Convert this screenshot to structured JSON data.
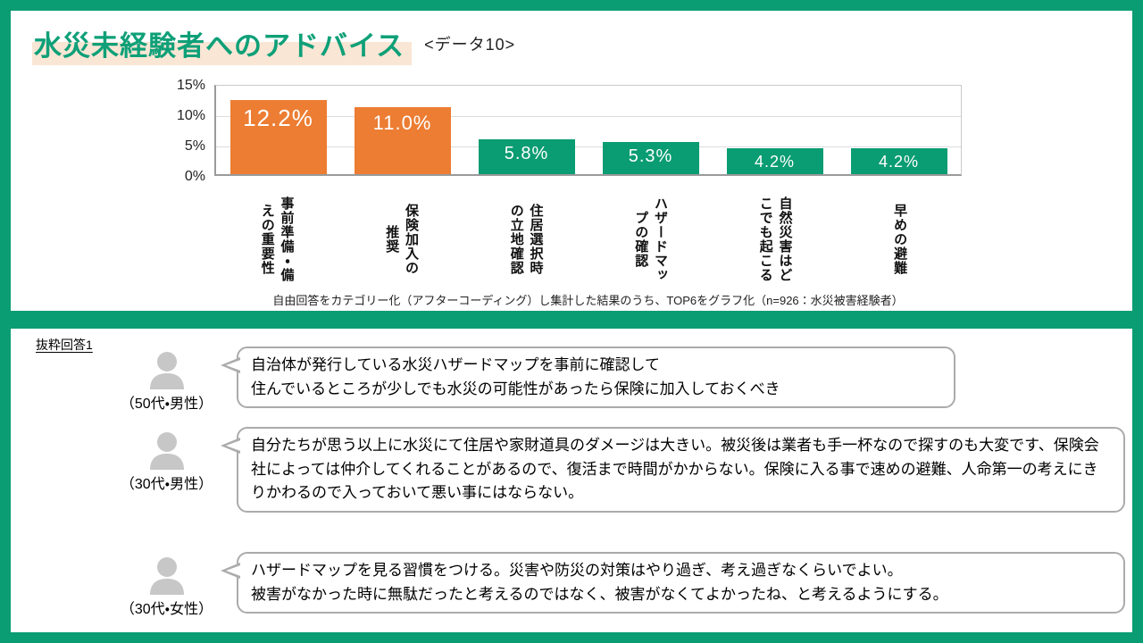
{
  "page": {
    "title": "水災未経験者へのアドバイス",
    "data_tag": "<データ10>"
  },
  "chart": {
    "y_ticks": [
      "15%",
      "10%",
      "5%",
      "0%"
    ],
    "footnote": "自由回答をカテゴリー化（アフターコーディング）し集計した結果のうち、TOP6をグラフ化（n=926：水災被害経験者）"
  },
  "chart_data": {
    "type": "bar",
    "title": "水災未経験者へのアドバイス",
    "categories": [
      "事前準備・備えの重要性",
      "保険加入の推奨",
      "住居選択時の立地確認",
      "ハザードマップの確認",
      "自然災害はどこでも起こる",
      "早めの避難"
    ],
    "categories_display": [
      "事前準備・備\nえの重要性",
      "保険加入の\n推奨",
      "住居選択時\nの立地確認",
      "ハザードマッ\nプの確認",
      "自然災害はど\nこでも起こる",
      "早めの避難"
    ],
    "values": [
      12.2,
      11.0,
      5.8,
      5.3,
      4.2,
      4.2
    ],
    "labels": [
      "12.2%",
      "11.0%",
      "5.8%",
      "5.3%",
      "4.2%",
      "4.2%"
    ],
    "bar_colors": [
      "#EC7D33",
      "#EC7D33",
      "#0A9C72",
      "#0A9C72",
      "#0A9C72",
      "#0A9C72"
    ],
    "xlabel": "",
    "ylabel": "",
    "ylim": [
      0,
      15
    ],
    "yticks_values": [
      0,
      5,
      10,
      15
    ],
    "grid": true,
    "legend": "none"
  },
  "excerpt": {
    "heading": "抜粋回答1",
    "items": [
      {
        "speaker": "（50代・男性）",
        "text": "自治体が発行している水災ハザードマップを事前に確認して\n住んでいるところが少しでも水災の可能性があったら保険に加入しておくべき"
      },
      {
        "speaker": "（30代・男性）",
        "text": "自分たちが思う以上に水災にて住居や家財道具のダメージは大きい。被災後は業者も手一杯なので探すのも大変です、保険会社によっては仲介してくれることがあるので、復活まで時間がかからない。保険に入る事で速めの避難、人命第一の考えにきりかわるので入っておいて悪い事にはならない。"
      },
      {
        "speaker": "（30代・女性）",
        "text": "ハザードマップを見る習慣をつける。災害や防災の対策はやり過ぎ、考え過ぎなくらいでよい。\n被害がなかった時に無駄だったと考えるのではなく、被害がなくてよかったね、と考えるようにする。"
      }
    ]
  },
  "colors": {
    "frame_green": "#0A9C72",
    "title_green": "#0FA078",
    "highlight_peach": "#FAE6D5",
    "bar_orange": "#EC7D33",
    "bar_green": "#0A9C72",
    "icon_gray": "#C7C7C7",
    "bubble_border_gray": "#ABABAB"
  }
}
